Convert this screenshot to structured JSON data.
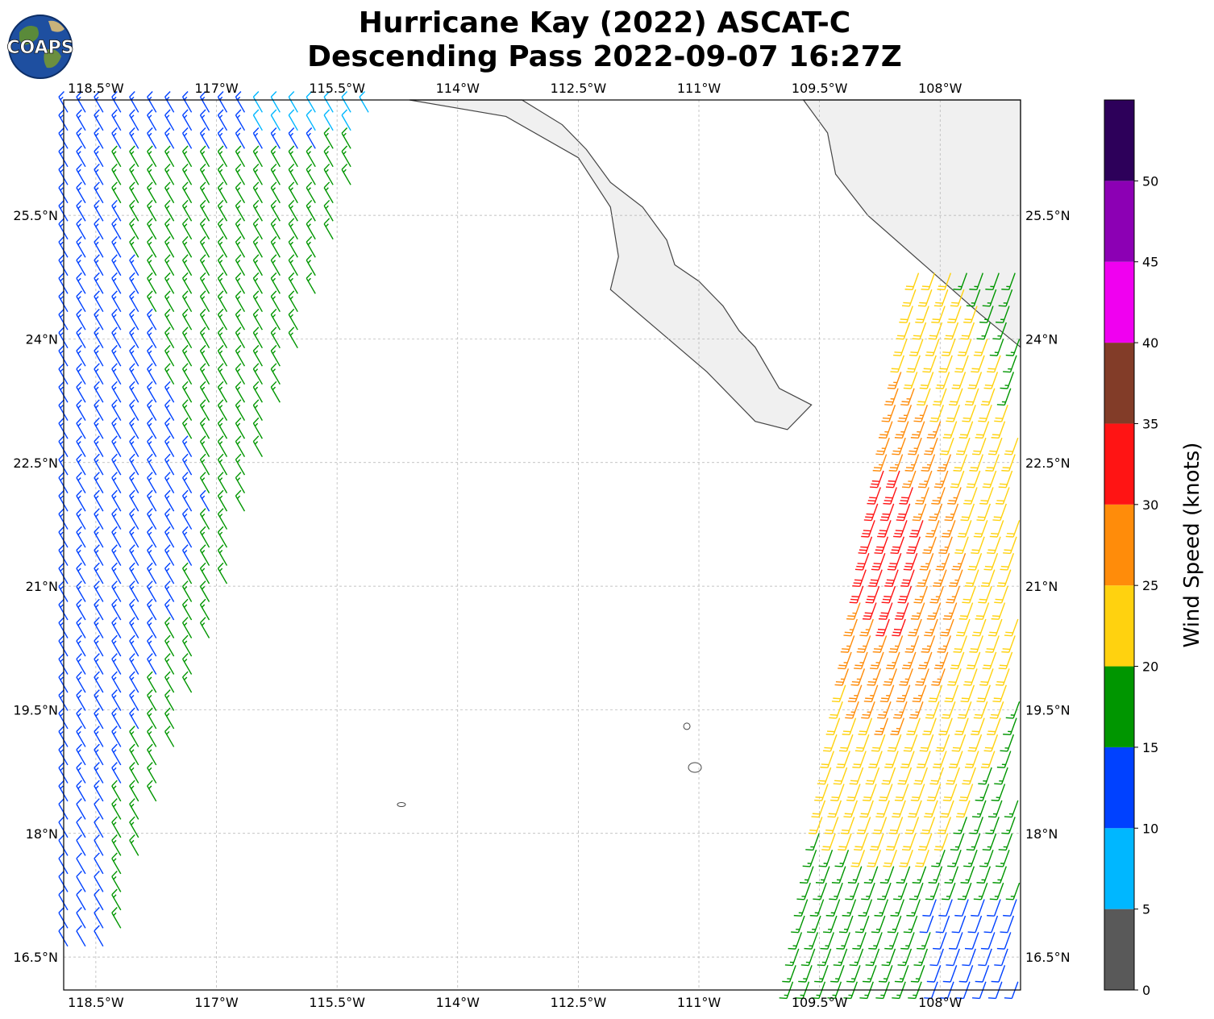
{
  "title": {
    "line1": "Hurricane Kay (2022) ASCAT-C",
    "line2": "Descending Pass 2022-09-07 16:27Z"
  },
  "logo": {
    "text": "COAPS"
  },
  "map": {
    "lon_range": [
      -118.9,
      -107.0
    ],
    "lat_range": [
      16.1,
      26.9
    ],
    "lon_ticks": [
      {
        "value": -118.5,
        "label": "118.5°W"
      },
      {
        "value": -117.0,
        "label": "117°W"
      },
      {
        "value": -115.5,
        "label": "115.5°W"
      },
      {
        "value": -114.0,
        "label": "114°W"
      },
      {
        "value": -112.5,
        "label": "112.5°W"
      },
      {
        "value": -111.0,
        "label": "111°W"
      },
      {
        "value": -109.5,
        "label": "109.5°W"
      },
      {
        "value": -108.0,
        "label": "108°W"
      }
    ],
    "lat_ticks": [
      {
        "value": 25.5,
        "label": "25.5°N"
      },
      {
        "value": 24.0,
        "label": "24°N"
      },
      {
        "value": 22.5,
        "label": "22.5°N"
      },
      {
        "value": 21.0,
        "label": "21°N"
      },
      {
        "value": 19.5,
        "label": "19.5°N"
      },
      {
        "value": 18.0,
        "label": "18°N"
      },
      {
        "value": 16.5,
        "label": "16.5°N"
      }
    ],
    "gridlines": true,
    "land_color": "#f0f0f0",
    "coast_color": "#444444"
  },
  "colorbar": {
    "label": "Wind Speed (knots)",
    "bins": [
      {
        "min": 0,
        "max": 5,
        "color": "#595959"
      },
      {
        "min": 5,
        "max": 10,
        "color": "#00b7ff"
      },
      {
        "min": 10,
        "max": 15,
        "color": "#0041ff"
      },
      {
        "min": 15,
        "max": 20,
        "color": "#009600"
      },
      {
        "min": 20,
        "max": 25,
        "color": "#ffd20f"
      },
      {
        "min": 25,
        "max": 30,
        "color": "#ff8c0a"
      },
      {
        "min": 30,
        "max": 35,
        "color": "#ff1414"
      },
      {
        "min": 35,
        "max": 40,
        "color": "#823c28"
      },
      {
        "min": 40,
        "max": 45,
        "color": "#f000f0"
      },
      {
        "min": 45,
        "max": 50,
        "color": "#8c00b4"
      },
      {
        "min": 50,
        "max": 55,
        "color": "#2d005a"
      }
    ],
    "ticks": [
      "0",
      "5",
      "10",
      "15",
      "20",
      "25",
      "30",
      "35",
      "40",
      "45",
      "50"
    ]
  },
  "chart_data": {
    "type": "wind_barbs",
    "units": "knots",
    "swaths": [
      {
        "name": "west",
        "lon_west_at_top": -118.9,
        "lon_east_at_top": -115.0,
        "lon_west_at_bottom": -118.9,
        "lon_east_at_bottom": -118.3,
        "lat_top": 26.9,
        "lat_bottom": 16.5,
        "direction_deg": 330,
        "speed_regions": [
          {
            "region": "northwest",
            "speed": 13
          },
          {
            "region": "northeast edge",
            "speed": 17
          },
          {
            "region": "south-central",
            "speed": 17
          },
          {
            "region": "northeast corner",
            "speed": 8
          },
          {
            "region": "far southwest",
            "speed": 12
          }
        ]
      },
      {
        "name": "east",
        "lon_west_at_top": -108.3,
        "lon_east_at_top": -107.0,
        "lon_west_at_bottom": -109.9,
        "lon_east_at_bottom": -107.0,
        "lat_top": 24.9,
        "lat_bottom": 16.1,
        "direction_deg": 200,
        "speed_regions": [
          {
            "region": "inner core near 108.6°W 21.5°N",
            "speed": 32
          },
          {
            "region": "around core",
            "speed": 27
          },
          {
            "region": "outer band",
            "speed": 22
          },
          {
            "region": "far field",
            "speed": 17
          },
          {
            "region": "southeast corner",
            "speed": 12
          }
        ]
      }
    ]
  }
}
